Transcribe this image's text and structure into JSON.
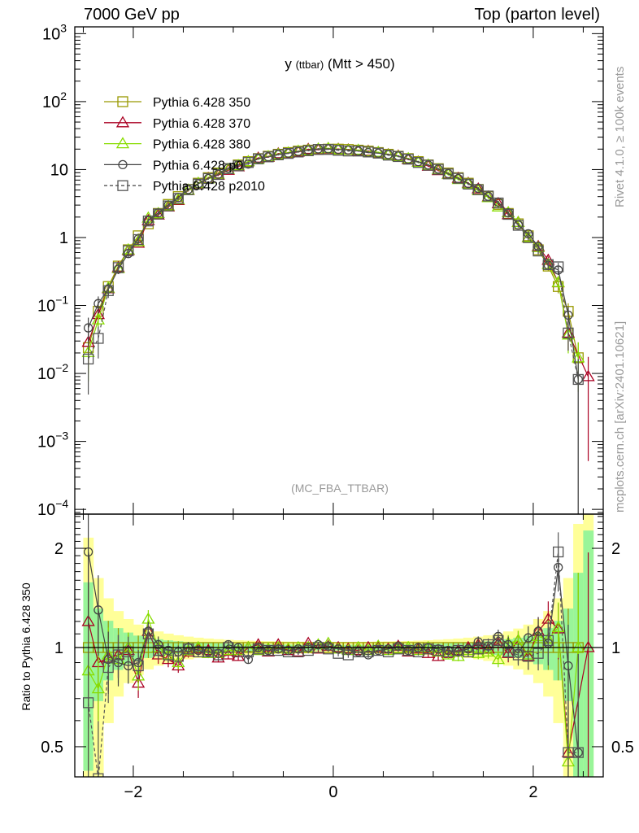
{
  "chart_data": {
    "type": "line",
    "header_left": "7000 GeV pp",
    "header_right": "Top (parton level)",
    "title_var": "y",
    "title_sub": "(ttbar)",
    "title_cut": "(Mtt > 450)",
    "analysis": "(MC_FBA_TTBAR)",
    "side_text_1": "Rivet 4.1.0, ≥ 100k events",
    "side_text_2": "mcplots.cern.ch [arXiv:2401.10621]",
    "ratio_ylabel": "Ratio to Pythia 6.428 350",
    "xlim": [
      -2.585,
      2.7
    ],
    "ylim_log10": [
      -4.07,
      3.1
    ],
    "ratio_ylim": [
      0.405,
      2.54
    ],
    "y_ticks": [
      {
        "exp": 3,
        "label": "10",
        "sup": "3"
      },
      {
        "exp": 2,
        "label": "10",
        "sup": "2"
      },
      {
        "exp": 1,
        "label": "10",
        "sup": ""
      },
      {
        "exp": 0,
        "label": "1",
        "sup": ""
      },
      {
        "exp": -1,
        "label": "10",
        "sup": "−1"
      },
      {
        "exp": -2,
        "label": "10",
        "sup": "−2"
      },
      {
        "exp": -3,
        "label": "10",
        "sup": "−3"
      },
      {
        "exp": -4,
        "label": "10",
        "sup": "−4"
      }
    ],
    "ratio_ticks": [
      {
        "v": 2,
        "label": "2"
      },
      {
        "v": 1,
        "label": "1"
      },
      {
        "v": 0.5,
        "label": "0.5"
      }
    ],
    "x_ticks": [
      {
        "v": -2,
        "label": "−2"
      },
      {
        "v": 0,
        "label": "0"
      },
      {
        "v": 2,
        "label": "2"
      }
    ],
    "x": [
      -2.45,
      -2.35,
      -2.25,
      -2.15,
      -2.05,
      -1.95,
      -1.85,
      -1.75,
      -1.65,
      -1.55,
      -1.45,
      -1.35,
      -1.25,
      -1.15,
      -1.05,
      -0.95,
      -0.85,
      -0.75,
      -0.65,
      -0.55,
      -0.45,
      -0.35,
      -0.25,
      -0.15,
      -0.05,
      0.05,
      0.15,
      0.25,
      0.35,
      0.45,
      0.55,
      0.65,
      0.75,
      0.85,
      0.95,
      1.05,
      1.15,
      1.25,
      1.35,
      1.45,
      1.55,
      1.65,
      1.75,
      1.85,
      1.95,
      2.05,
      2.15,
      2.25,
      2.35,
      2.45,
      2.55
    ],
    "reference": [
      0.024,
      0.082,
      0.19,
      0.38,
      0.66,
      1.06,
      1.59,
      2.26,
      3.07,
      4.0,
      5.1,
      6.3,
      7.6,
      8.9,
      10.3,
      11.7,
      13.1,
      14.5,
      15.7,
      16.8,
      17.8,
      18.7,
      19.3,
      19.75,
      19.97,
      19.97,
      19.75,
      19.3,
      18.7,
      17.8,
      16.8,
      15.7,
      14.5,
      13.1,
      11.7,
      10.3,
      8.9,
      7.6,
      6.3,
      5.1,
      4.0,
      3.07,
      2.26,
      1.59,
      1.06,
      0.66,
      0.38,
      0.19,
      0.082,
      0.017,
      null
    ],
    "series": [
      {
        "name": "Pythia 6.428 350",
        "color": "#999900",
        "marker": "square",
        "dash": false,
        "ratio": [
          1,
          1,
          1,
          1,
          1,
          1,
          1,
          1,
          1,
          1,
          1,
          1,
          1,
          1,
          1,
          1,
          1,
          1,
          1,
          1,
          1,
          1,
          1,
          1,
          1,
          1,
          1,
          1,
          1,
          1,
          1,
          1,
          1,
          1,
          1,
          1,
          1,
          1,
          1,
          1,
          1,
          1,
          1,
          1,
          1,
          1,
          1,
          1,
          1,
          1,
          null
        ]
      },
      {
        "name": "Pythia 6.428 370",
        "color": "#aa0022",
        "marker": "triangle",
        "dash": false,
        "ratio": [
          1.2,
          0.9,
          0.93,
          0.95,
          0.98,
          0.78,
          1.12,
          0.95,
          0.92,
          0.88,
          0.97,
          0.99,
          0.98,
          0.93,
          0.95,
          0.94,
          1.0,
          1.02,
          0.97,
          1.02,
          0.98,
          0.97,
          1.03,
          0.99,
          1.01,
          1.0,
          0.99,
          0.98,
          1.0,
          1.0,
          0.99,
          1.01,
          0.97,
          0.99,
          0.96,
          0.94,
          0.96,
          0.98,
          1.0,
          1.02,
          0.99,
          1.03,
          0.96,
          1.05,
          0.94,
          1.12,
          1.22,
          1.14,
          0.48,
          null,
          1.0
        ]
      },
      {
        "name": "Pythia 6.428 380",
        "color": "#88dd00",
        "marker": "triangle",
        "dash": false,
        "ratio": [
          0.85,
          0.75,
          0.95,
          0.92,
          1.0,
          0.82,
          1.22,
          1.0,
          0.95,
          0.9,
          0.98,
          1.0,
          0.96,
          0.96,
          0.98,
          0.98,
          1.0,
          0.98,
          0.99,
          1.0,
          0.99,
          1.0,
          1.0,
          1.02,
          1.03,
          0.99,
          0.98,
          1.0,
          0.98,
          1.01,
          0.98,
          0.99,
          1.0,
          0.98,
          1.0,
          0.97,
          0.95,
          0.94,
          0.98,
          0.96,
          0.97,
          0.92,
          1.03,
          1.05,
          0.95,
          1.08,
          1.06,
          1.15,
          0.45,
          1.0,
          null
        ]
      },
      {
        "name": "Pythia 6.428 p0",
        "color": "#444444",
        "marker": "circle",
        "dash": false,
        "ratio": [
          1.95,
          1.3,
          0.92,
          0.9,
          0.88,
          0.9,
          1.12,
          1.02,
          0.98,
          0.97,
          1.0,
          0.98,
          0.97,
          0.96,
          1.02,
          1.0,
          0.92,
          1.0,
          0.98,
          0.99,
          0.98,
          0.99,
          1.0,
          1.02,
          1.01,
          0.99,
          0.98,
          0.97,
          0.95,
          0.98,
          0.99,
          1.01,
          0.98,
          1.0,
          1.0,
          0.99,
          0.98,
          0.97,
          0.99,
          1.04,
          1.01,
          1.08,
          1.02,
          0.96,
          1.07,
          1.12,
          1.03,
          1.75,
          0.88,
          0.48,
          null
        ]
      },
      {
        "name": "Pythia 6.428 p2010",
        "color": "#555555",
        "marker": "square",
        "dash": true,
        "ratio": [
          0.68,
          0.4,
          0.87,
          0.95,
          0.97,
          0.88,
          1.1,
          0.98,
          0.95,
          0.94,
          0.99,
          0.97,
          0.97,
          0.95,
          1.0,
          0.97,
          0.97,
          0.99,
          0.98,
          0.98,
          0.97,
          0.97,
          0.98,
          1.0,
          0.99,
          0.96,
          0.95,
          0.97,
          0.97,
          0.98,
          0.97,
          0.99,
          0.98,
          0.97,
          0.99,
          0.98,
          0.97,
          0.98,
          0.97,
          0.99,
          1.02,
          1.05,
          0.97,
          0.95,
          0.94,
          0.96,
          1.05,
          1.95,
          0.48,
          0.48,
          null
        ]
      }
    ]
  }
}
